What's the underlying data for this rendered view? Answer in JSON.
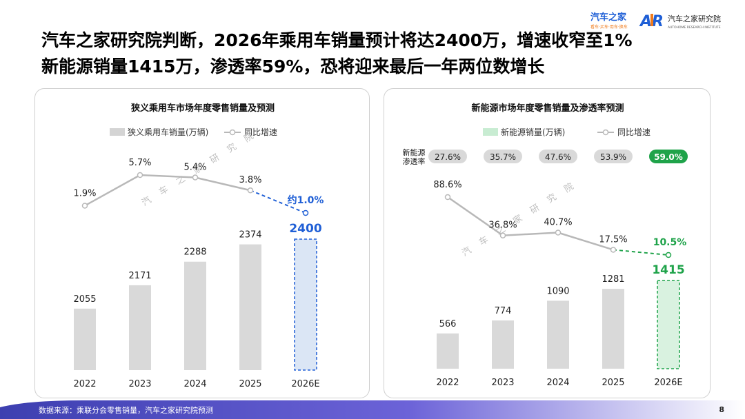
{
  "brand": {
    "logo1_text": "汽车之家",
    "logo1_sub": "看车·买车·用车·换车",
    "logo2_text": "汽车之家研究院",
    "logo2_sub": "AUTOHOME RESEARCH INSTITUTE",
    "logo2_mark": "AR"
  },
  "headline": {
    "line1": "汽车之家研究院判断，2026年乘用车销量预计将达2400万，增速收窄至1%",
    "line2": "新能源销量1415万，渗透率59%，恐将迎来最后一年两位数增长"
  },
  "watermark": "汽 车 之 家 研 究 院",
  "footer": {
    "source": "数据来源：乘联分会零售销量，汽车之家研究院预测",
    "page": "8"
  },
  "colors": {
    "bar_gray": "#d9d9d9",
    "blue": "#1f5fd6",
    "green": "#1fa34a",
    "line_gray": "#b8b8b8"
  },
  "chart_data": [
    {
      "type": "bar+line",
      "title": "狭义乘用车市场年度零售销量及预测",
      "categories": [
        "2022",
        "2023",
        "2024",
        "2025",
        "2026E"
      ],
      "legend": [
        "狭义乘用车销量(万辆)",
        "同比增速"
      ],
      "series": [
        {
          "name": "狭义乘用车销量(万辆)",
          "type": "bar",
          "values": [
            2055,
            2171,
            2288,
            2374,
            2400
          ],
          "labels": [
            "2055",
            "2171",
            "2288",
            "2374",
            "2400"
          ]
        },
        {
          "name": "同比增速",
          "type": "line",
          "values": [
            1.9,
            5.7,
            5.4,
            3.8,
            1.0
          ],
          "labels": [
            "1.9%",
            "5.7%",
            "5.4%",
            "3.8%",
            "约1.0%"
          ]
        }
      ],
      "highlight": "2026E",
      "legend_position": "top"
    },
    {
      "type": "bar+line",
      "title": "新能源市场年度零售销量及渗透率预测",
      "categories": [
        "2022",
        "2023",
        "2024",
        "2025",
        "2026E"
      ],
      "legend": [
        "新能源销量(万辆)",
        "同比增速"
      ],
      "penetration_label": "新能源\n渗透率",
      "penetration": [
        27.6,
        35.7,
        47.6,
        53.9,
        59.0
      ],
      "penetration_labels": [
        "27.6%",
        "35.7%",
        "47.6%",
        "53.9%",
        "59.0%"
      ],
      "series": [
        {
          "name": "新能源销量(万辆)",
          "type": "bar",
          "values": [
            566,
            774,
            1090,
            1281,
            1415
          ],
          "labels": [
            "566",
            "774",
            "1090",
            "1281",
            "1415"
          ]
        },
        {
          "name": "同比增速",
          "type": "line",
          "values": [
            88.6,
            36.8,
            40.7,
            17.5,
            10.5
          ],
          "labels": [
            "88.6%",
            "36.8%",
            "40.7%",
            "17.5%",
            "10.5%"
          ]
        }
      ],
      "highlight": "2026E",
      "legend_position": "top"
    }
  ]
}
